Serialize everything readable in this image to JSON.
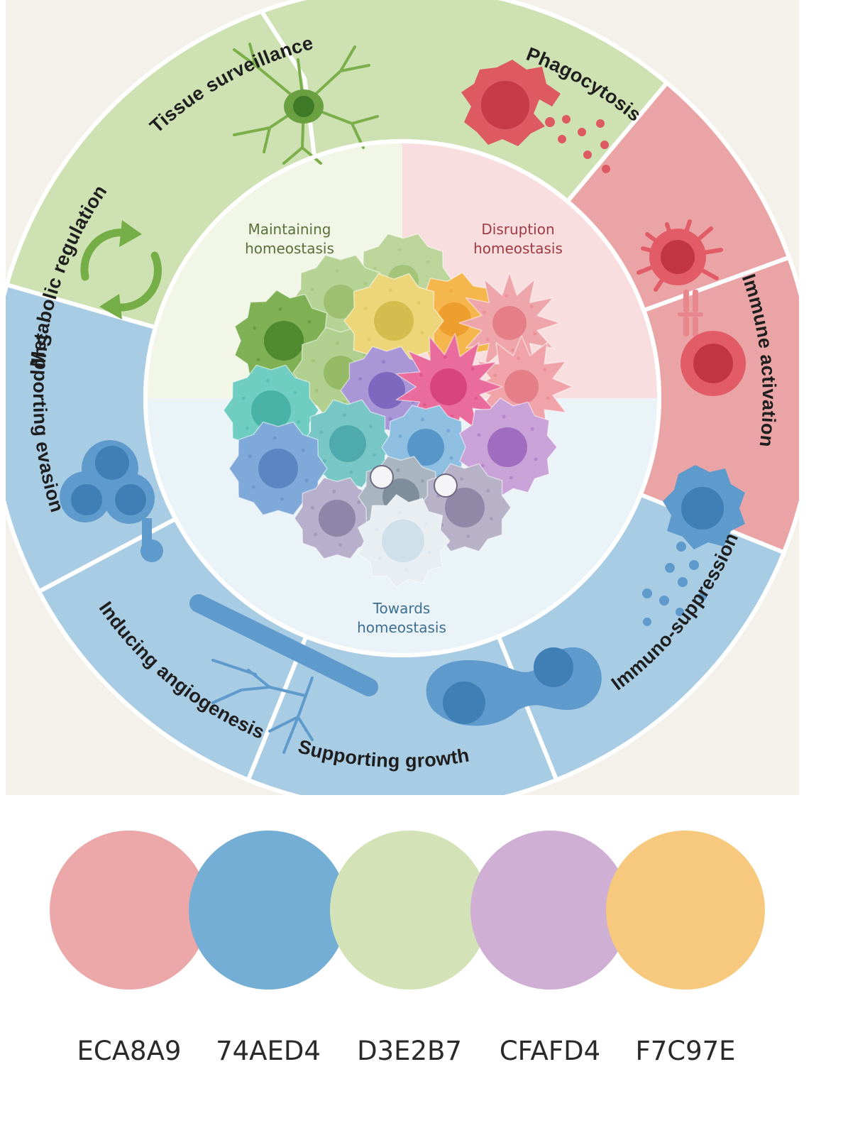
{
  "segments": [
    {
      "label": "Tissue surveillance",
      "group": "green"
    },
    {
      "label": "Phagocytosis",
      "group": "red"
    },
    {
      "label": "Immune activation",
      "group": "red"
    },
    {
      "label": "Immuno-suppression",
      "group": "blue"
    },
    {
      "label": "Supporting growth",
      "group": "blue"
    },
    {
      "label": "Inducing angiogenesis",
      "group": "blue"
    },
    {
      "label": "Supporting evasion",
      "group": "blue"
    },
    {
      "label": "Metabolic regulation",
      "group": "green"
    }
  ],
  "center": {
    "maintaining": [
      "Maintaining",
      "homeostasis"
    ],
    "disruption": [
      "Disruption",
      "homeostasis"
    ],
    "towards": [
      "Towards",
      "homeostasis"
    ]
  },
  "palette": [
    {
      "hex": "#ECA8A9",
      "label": "ECA8A9"
    },
    {
      "hex": "#74AED4",
      "label": "74AED4"
    },
    {
      "hex": "#D3E2B7",
      "label": "D3E2B7"
    },
    {
      "hex": "#CFAFD4",
      "label": "CFAFD4"
    },
    {
      "hex": "#F7C97E",
      "label": "F7C97E"
    }
  ],
  "colors": {
    "green_segment": "#CEE1B3",
    "red_segment": "#EBA4A6",
    "blue_segment": "#A9CCE5",
    "green_inner": "#F1F6E6",
    "red_inner": "#F8DEDF",
    "blue_inner": "#EAF3F8",
    "green_text": "#5C6E3A",
    "red_text": "#9E3A44",
    "blue_text": "#3E6F90"
  }
}
